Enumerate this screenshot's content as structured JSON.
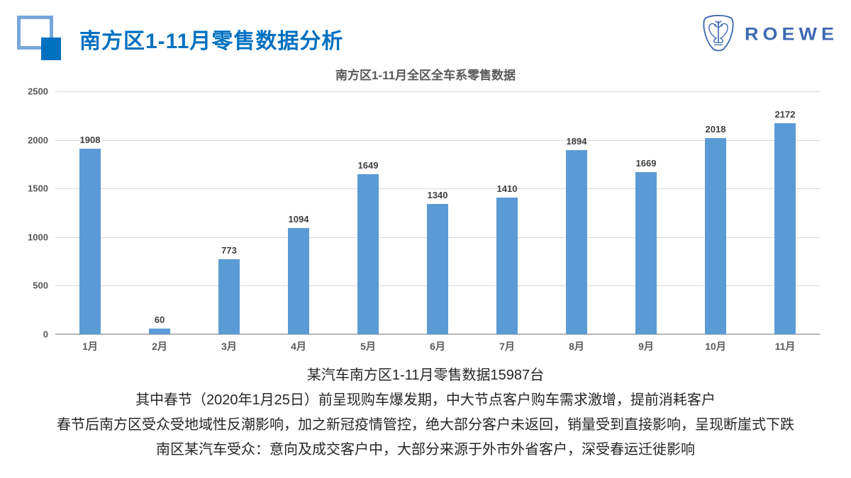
{
  "header": {
    "title": "南方区1-11月零售数据分析",
    "logo_text": "ROEWE"
  },
  "chart_data": {
    "type": "bar",
    "title": "南方区1-11月全区全车系零售数据",
    "categories": [
      "1月",
      "2月",
      "3月",
      "4月",
      "5月",
      "6月",
      "7月",
      "8月",
      "9月",
      "10月",
      "11月"
    ],
    "values": [
      1908,
      60,
      773,
      1094,
      1649,
      1340,
      1410,
      1894,
      1669,
      2018,
      2172
    ],
    "yticks": [
      0,
      500,
      1000,
      1500,
      2000,
      2500
    ],
    "ylim": [
      0,
      2500
    ],
    "xlabel": "",
    "ylabel": "",
    "grid": "horizontal",
    "legend": "none",
    "bar_color": "#5b9bd5"
  },
  "colors": {
    "accent_blue": "#0070c0",
    "logo_blue": "#3d69b1",
    "bar_blue": "#5b9bd5",
    "gridline_gray": "#d9d9d9",
    "text_gray": "#595959"
  },
  "notes": [
    "某汽车南方区1-11月零售数据15987台",
    "其中春节（2020年1月25日）前呈现购车爆发期，中大节点客户购车需求激增，提前消耗客户",
    "春节后南方区受众受地域性反潮影响，加之新冠疫情管控，绝大部分客户未返回，销量受到直接影响，呈现断崖式下跌",
    "南区某汽车受众：意向及成交客户中，大部分来源于外市外省客户，深受春运迁徙影响"
  ]
}
